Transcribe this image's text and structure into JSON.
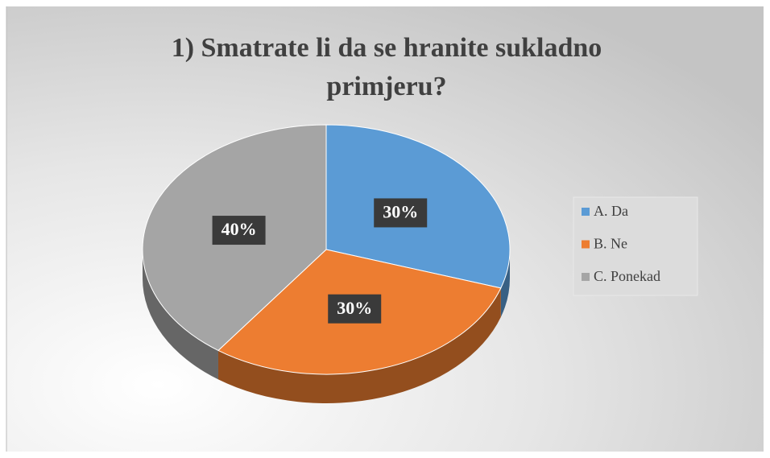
{
  "chart_data": {
    "type": "pie",
    "title": "1) Smatrate li da se hranite sukladno primjeru?",
    "categories": [
      "A. Da",
      "B. Ne",
      "C. Ponekad"
    ],
    "values": [
      30,
      30,
      40
    ],
    "value_labels": [
      "30%",
      "30%",
      "40%"
    ],
    "colors": [
      "#5b9bd5",
      "#ed7d31",
      "#a5a5a5"
    ],
    "legend": "right"
  }
}
